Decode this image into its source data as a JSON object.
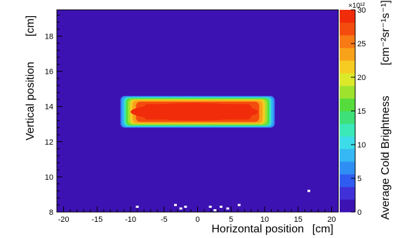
{
  "chart_data": {
    "type": "heatmap",
    "title": "",
    "xlabel": "Horizontal position",
    "ylabel": "Vertical position",
    "xunit": "[cm]",
    "yunit": "[cm]",
    "colorbar_label": "Average Cold Brightness",
    "colorbar_unit": "[cm⁻²sr⁻¹s⁻¹]",
    "colorbar_multiplier": "×10¹²",
    "x_range": [
      -21,
      21
    ],
    "y_range": [
      8,
      19.5
    ],
    "z_range": [
      0,
      30
    ],
    "x_ticks": [
      -20,
      -15,
      -10,
      -5,
      0,
      5,
      10,
      15,
      20
    ],
    "y_ticks": [
      8,
      10,
      12,
      14,
      16,
      18
    ],
    "z_ticks": [
      0,
      5,
      10,
      15,
      20,
      25,
      30
    ],
    "background_value": 0.5,
    "beam_region": {
      "x_range": [
        -11.5,
        11.5
      ],
      "y_range": [
        12.8,
        14.6
      ],
      "peak_value": 29,
      "core_x_range": [
        -10,
        9
      ],
      "core_y_range": [
        13.2,
        14.2
      ]
    },
    "outlier_points": [
      {
        "x": 16.6,
        "y": 9.2,
        "value": 0
      },
      {
        "x": 6.2,
        "y": 8.4,
        "value": 0
      },
      {
        "x": -3.3,
        "y": 8.4,
        "value": 0
      },
      {
        "x": -1.8,
        "y": 8.3,
        "value": 0
      },
      {
        "x": 1.9,
        "y": 8.3,
        "value": 0
      },
      {
        "x": 3.5,
        "y": 8.3,
        "value": 0
      },
      {
        "x": -9.0,
        "y": 8.3,
        "value": 0
      },
      {
        "x": 4.5,
        "y": 8.2,
        "value": 0
      },
      {
        "x": -2.5,
        "y": 8.2,
        "value": 0
      },
      {
        "x": 2.6,
        "y": 8.1,
        "value": 0
      }
    ],
    "colormap": [
      "#3d12b2",
      "#4030d8",
      "#2f5cf0",
      "#2f8ef4",
      "#35b8f4",
      "#3cdde8",
      "#3ae8b8",
      "#3ee07a",
      "#55dc3c",
      "#9ee22e",
      "#dce82a",
      "#f6cc22",
      "#f8a21a",
      "#f77a14",
      "#f44c0e",
      "#f02c0a"
    ],
    "grid": false,
    "legend": "none"
  }
}
